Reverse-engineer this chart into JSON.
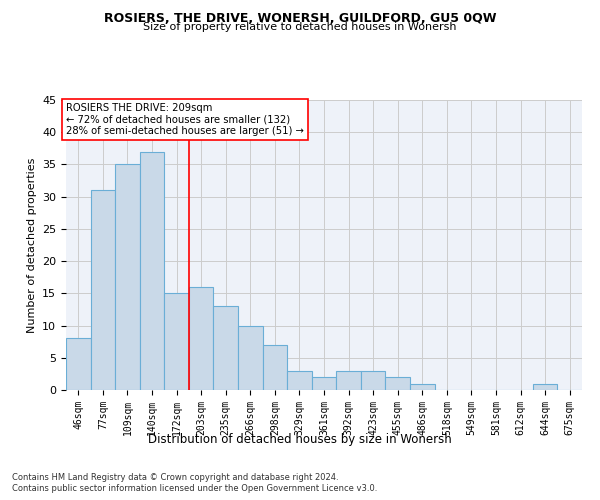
{
  "title": "ROSIERS, THE DRIVE, WONERSH, GUILDFORD, GU5 0QW",
  "subtitle": "Size of property relative to detached houses in Wonersh",
  "xlabel": "Distribution of detached houses by size in Wonersh",
  "ylabel": "Number of detached properties",
  "categories": [
    "46sqm",
    "77sqm",
    "109sqm",
    "140sqm",
    "172sqm",
    "203sqm",
    "235sqm",
    "266sqm",
    "298sqm",
    "329sqm",
    "361sqm",
    "392sqm",
    "423sqm",
    "455sqm",
    "486sqm",
    "518sqm",
    "549sqm",
    "581sqm",
    "612sqm",
    "644sqm",
    "675sqm"
  ],
  "values": [
    8,
    31,
    35,
    37,
    15,
    16,
    13,
    10,
    7,
    3,
    2,
    3,
    3,
    2,
    1,
    0,
    0,
    0,
    0,
    1,
    0
  ],
  "bar_color": "#c9d9e8",
  "bar_edge_color": "#6aaed6",
  "grid_color": "#cccccc",
  "background_color": "#eef2f9",
  "annotation_box_text": "ROSIERS THE DRIVE: 209sqm\n← 72% of detached houses are smaller (132)\n28% of semi-detached houses are larger (51) →",
  "red_line_x": 4.5,
  "ylim": [
    0,
    45
  ],
  "yticks": [
    0,
    5,
    10,
    15,
    20,
    25,
    30,
    35,
    40,
    45
  ],
  "footer_line1": "Contains HM Land Registry data © Crown copyright and database right 2024.",
  "footer_line2": "Contains public sector information licensed under the Open Government Licence v3.0."
}
